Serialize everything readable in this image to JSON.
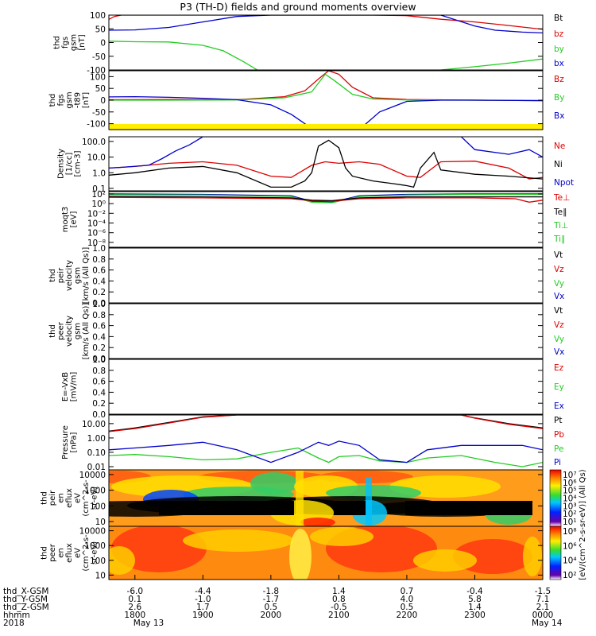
{
  "title": "P3 (TH-D) fields and ground moments overview",
  "chart_data": {
    "type": "line",
    "time_axis": {
      "range": [
        "2018-05-13 17:30",
        "2018-05-14 00:00"
      ],
      "tick_rows": [
        {
          "label": "thd_X-GSM",
          "values": [
            "-6.0",
            "-4.4",
            "-1.8",
            "1.4",
            "0.7",
            "-0.4",
            "-1.5"
          ]
        },
        {
          "label": "thd_Y-GSM",
          "values": [
            "0.1",
            "-1.0",
            "-1.7",
            "0.8",
            "4.0",
            "5.8",
            "7.1"
          ]
        },
        {
          "label": "thd_Z-GSM",
          "values": [
            "2.6",
            "1.7",
            "0.5",
            "-0.5",
            "0.5",
            "1.4",
            "2.1"
          ]
        },
        {
          "label": "hhmm",
          "values": [
            "1800",
            "1900",
            "2000",
            "2100",
            "2200",
            "2300",
            "0000"
          ]
        }
      ],
      "year": "2018",
      "date_labels": [
        "May 13",
        "May 14"
      ]
    },
    "panels": [
      {
        "name": "fgs",
        "ylabel": [
          "thd",
          "fgs",
          "gsm",
          "[nT]"
        ],
        "ylim": [
          -100,
          100
        ],
        "ticks": [
          "100",
          "50",
          "0",
          "-50",
          "-100"
        ],
        "legend": [
          {
            "name": "Bt",
            "color": "#000000"
          },
          {
            "name": "bz",
            "color": "#dd0000"
          },
          {
            "name": "by",
            "color": "#22cc22"
          },
          {
            "name": "bx",
            "color": "#0000cc"
          }
        ],
        "series": [
          {
            "name": "bz",
            "color": "#dd0000",
            "x": [
              17.62,
              17.7,
              17.8,
              18.0,
              18.3,
              18.6,
              19.0,
              19.5,
              20.0,
              20.5,
              20.9,
              21.5,
              22.0,
              22.5,
              23.0,
              23.5,
              24.0
            ],
            "y": [
              85,
              95,
              100,
              100,
              100,
              100,
              100,
              100,
              100,
              100,
              100,
              100,
              98,
              85,
              75,
              62,
              48
            ]
          },
          {
            "name": "bx",
            "color": "#0000cc",
            "x": [
              17.62,
              18.0,
              18.5,
              19.0,
              19.5,
              20.0,
              20.5,
              21.0,
              21.5,
              22.0,
              22.5,
              23.0,
              23.3,
              23.7,
              24.0
            ],
            "y": [
              45,
              46,
              55,
              75,
              95,
              100,
              100,
              100,
              100,
              100,
              100,
              60,
              45,
              38,
              35
            ]
          },
          {
            "name": "by",
            "color": "#22cc22",
            "x": [
              17.62,
              18.0,
              18.5,
              19.0,
              19.3,
              19.6,
              19.8
            ],
            "y": [
              5,
              3,
              2,
              -10,
              -30,
              -70,
              -100
            ]
          },
          {
            "name": "by",
            "color": "#22cc22",
            "x": [
              22.5,
              23.0,
              23.5,
              24.0
            ],
            "y": [
              -100,
              -88,
              -75,
              -60
            ]
          }
        ]
      },
      {
        "name": "fgs_gse",
        "ylabel": [
          "thd",
          "fgs",
          "gsm",
          "-t89",
          "[nT]"
        ],
        "ylim": [
          -125,
          125
        ],
        "ticks": [
          "100",
          "50",
          "0",
          "-50",
          "-100"
        ],
        "legend": [
          {
            "name": "Bz",
            "color": "#dd0000"
          },
          {
            "name": "By",
            "color": "#22cc22"
          },
          {
            "name": "Bx",
            "color": "#0000cc"
          }
        ],
        "series": [
          {
            "name": "Bz",
            "color": "#dd0000",
            "x": [
              17.62,
              18.5,
              19.5,
              20.2,
              20.5,
              20.7,
              20.85,
              21.0,
              21.2,
              21.5,
              22.0,
              23.0,
              24.0
            ],
            "y": [
              2,
              3,
              2,
              15,
              40,
              90,
              125,
              110,
              55,
              10,
              3,
              0,
              -2
            ]
          },
          {
            "name": "By",
            "color": "#22cc22",
            "x": [
              17.62,
              18.5,
              19.5,
              20.2,
              20.6,
              20.8,
              20.95,
              21.2,
              21.5,
              22.0,
              23.0,
              24.0
            ],
            "y": [
              0,
              0,
              1,
              10,
              35,
              110,
              80,
              25,
              5,
              1,
              0,
              -1
            ]
          },
          {
            "name": "Bx",
            "color": "#0000cc",
            "x": [
              17.62,
              18.0,
              18.5,
              19.0,
              19.5,
              20.0,
              20.3,
              20.6,
              20.8,
              21.3,
              21.6,
              22.0,
              22.5,
              23.0,
              24.0
            ],
            "y": [
              14,
              15,
              12,
              8,
              2,
              -20,
              -60,
              -120,
              -125,
              -125,
              -50,
              -5,
              0,
              0,
              -2
            ]
          }
        ]
      },
      {
        "name": "density",
        "ylabel": [
          "Density",
          "[1/cc]",
          "[cm-3]"
        ],
        "log": true,
        "ylim": [
          0.07,
          200
        ],
        "ticks": [
          "100.0",
          "10.0",
          "1.0",
          "0.1"
        ],
        "tick_values": [
          100,
          10,
          1,
          0.1
        ],
        "legend": [
          {
            "name": "Ne",
            "color": "#dd0000"
          },
          {
            "name": "Ni",
            "color": "#000000"
          },
          {
            "name": "Npot",
            "color": "#0000cc"
          }
        ],
        "series": [
          {
            "name": "Ne",
            "color": "#dd0000",
            "x": [
              17.62,
              18.0,
              18.5,
              19.0,
              19.5,
              20.0,
              20.3,
              20.6,
              20.8,
              21.0,
              21.3,
              21.6,
              22.0,
              22.2,
              22.5,
              23.0,
              23.5,
              23.8,
              24.0
            ],
            "y": [
              2.0,
              2.5,
              4.0,
              5.0,
              3.0,
              0.6,
              0.5,
              3.0,
              5.0,
              4.0,
              5.0,
              3.5,
              0.6,
              0.5,
              5.0,
              5.5,
              2.0,
              0.4,
              0.5
            ]
          },
          {
            "name": "Ni",
            "color": "#000000",
            "x": [
              17.62,
              18.0,
              18.5,
              19.0,
              19.5,
              20.0,
              20.3,
              20.5,
              20.6,
              20.7,
              20.85,
              21.0,
              21.1,
              21.2,
              21.5,
              21.8,
              22.0,
              22.1,
              22.2,
              22.4,
              22.5,
              23.0,
              23.5,
              24.0
            ],
            "y": [
              0.7,
              1.0,
              2.0,
              2.5,
              1.0,
              0.12,
              0.12,
              0.3,
              1.0,
              50,
              120,
              40,
              2.0,
              0.6,
              0.3,
              0.2,
              0.15,
              0.12,
              2.0,
              20,
              1.5,
              0.8,
              0.6,
              0.4
            ]
          },
          {
            "name": "Npot",
            "color": "#0000cc",
            "x": [
              17.62,
              17.8,
              18.2,
              18.4,
              18.6,
              18.8,
              19.0,
              22.8,
              23.0,
              23.5,
              23.8,
              24.0
            ],
            "y": [
              2.0,
              2.2,
              3.0,
              8.0,
              25,
              60,
              200,
              200,
              30,
              15,
              30,
              10
            ]
          }
        ]
      },
      {
        "name": "moms_t",
        "ylabel": [
          "moqt3",
          "[eV]"
        ],
        "log": true,
        "ylim": [
          1e-09,
          300
        ],
        "ticks": [
          "10²",
          "10⁰",
          "10⁻²",
          "10⁻⁴",
          "10⁻⁶",
          "10⁻⁸"
        ],
        "tick_values": [
          100,
          1,
          0.01,
          0.0001,
          1e-06,
          1e-08
        ],
        "legend": [
          {
            "name": "Te⊥",
            "color": "#dd0000"
          },
          {
            "name": "Te∥",
            "color": "#000000"
          },
          {
            "name": "Ti⊥",
            "color": "#22cc22"
          },
          {
            "name": "Ti∥",
            "color": "#22cc22"
          }
        ],
        "series": [
          {
            "name": "Ti",
            "color": "#0000cc",
            "x": [
              17.62,
              19.0,
              20.3,
              20.6,
              20.9,
              21.3,
              22.0,
              23.0,
              24.0
            ],
            "y": [
              100,
              80,
              40,
              3,
              2,
              40,
              80,
              100,
              100
            ]
          },
          {
            "name": "Ti∥",
            "color": "#22cc22",
            "x": [
              17.62,
              19.0,
              20.3,
              20.6,
              20.9,
              21.3,
              22.0,
              23.0,
              24.0
            ],
            "y": [
              70,
              60,
              30,
              2,
              1.5,
              30,
              60,
              80,
              80
            ]
          },
          {
            "name": "Te⊥",
            "color": "#dd0000",
            "x": [
              17.62,
              19.0,
              20.3,
              20.6,
              20.9,
              21.3,
              22.0,
              23.0,
              23.6,
              23.8,
              24.0
            ],
            "y": [
              20,
              15,
              10,
              4,
              3,
              10,
              15,
              15,
              10,
              2,
              5
            ]
          },
          {
            "name": "Te∥",
            "color": "#000000",
            "x": [
              17.62,
              19.0,
              20.3,
              20.6,
              20.9,
              21.3,
              22.0,
              23.0,
              24.0
            ],
            "y": [
              30,
              25,
              15,
              5,
              4,
              15,
              25,
              25,
              25
            ]
          }
        ]
      },
      {
        "name": "peir_velocity",
        "ylabel": [
          "thd",
          "peir",
          "velocity",
          "gsm",
          "[km/s (All Qs)]"
        ],
        "ylim": [
          0,
          1
        ],
        "ticks": [
          "1.0",
          "0.8",
          "0.6",
          "0.4",
          "0.2",
          "0.0"
        ],
        "legend": [
          {
            "name": "Vt",
            "color": "#000000"
          },
          {
            "name": "Vz",
            "color": "#dd0000"
          },
          {
            "name": "Vy",
            "color": "#22cc22"
          },
          {
            "name": "Vx",
            "color": "#0000cc"
          }
        ],
        "series": []
      },
      {
        "name": "peer_velocity",
        "ylabel": [
          "thd",
          "peer",
          "velocity",
          "gsm",
          "[km/s (All Qs)]"
        ],
        "ylim": [
          0,
          1
        ],
        "ticks": [
          "1.0",
          "0.8",
          "0.6",
          "0.4",
          "0.2",
          "0.0"
        ],
        "legend": [
          {
            "name": "Vt",
            "color": "#000000"
          },
          {
            "name": "Vz",
            "color": "#dd0000"
          },
          {
            "name": "Vy",
            "color": "#22cc22"
          },
          {
            "name": "Vx",
            "color": "#0000cc"
          }
        ],
        "series": []
      },
      {
        "name": "efield",
        "ylabel": [
          "E=-VxB",
          "[mV/m]"
        ],
        "ylim": [
          0,
          1
        ],
        "ticks": [
          "1.0",
          "0.8",
          "0.6",
          "0.4",
          "0.2",
          "0.0"
        ],
        "legend": [
          {
            "name": "Ez",
            "color": "#dd0000"
          },
          {
            "name": "Ey",
            "color": "#22cc22"
          },
          {
            "name": "Ex",
            "color": "#0000cc"
          }
        ],
        "series": []
      },
      {
        "name": "pressure",
        "ylabel": [
          "Pressure",
          "[nPa]"
        ],
        "log": true,
        "ylim": [
          0.006,
          40
        ],
        "ticks": [
          "10.00",
          "1.00",
          "0.10",
          "0.01"
        ],
        "tick_values": [
          10,
          1,
          0.1,
          0.01
        ],
        "legend": [
          {
            "name": "Pt",
            "color": "#000000"
          },
          {
            "name": "Pb",
            "color": "#dd0000"
          },
          {
            "name": "Pe",
            "color": "#22cc22"
          },
          {
            "name": "Pi",
            "color": "#0000cc"
          }
        ],
        "series": [
          {
            "name": "Pt",
            "color": "#000000",
            "x": [
              17.62,
              18.0,
              18.5,
              19.0,
              19.5,
              22.8,
              23.0,
              23.5,
              24.0
            ],
            "y": [
              3.0,
              5.0,
              12,
              30,
              40,
              40,
              25,
              10,
              5.0
            ]
          },
          {
            "name": "Pb",
            "color": "#dd0000",
            "x": [
              17.62,
              18.0,
              18.5,
              19.0,
              19.5,
              22.8,
              23.0,
              23.5,
              24.0
            ],
            "y": [
              2.8,
              4.5,
              11,
              28,
              40,
              40,
              24,
              9,
              4.5
            ]
          },
          {
            "name": "Pe",
            "color": "#22cc22",
            "x": [
              17.62,
              18.0,
              18.5,
              19.0,
              19.5,
              20.0,
              20.4,
              20.7,
              20.85,
              21.0,
              21.3,
              21.6,
              22.0,
              22.3,
              22.8,
              23.3,
              23.7,
              24.0
            ],
            "y": [
              0.06,
              0.07,
              0.05,
              0.03,
              0.035,
              0.1,
              0.2,
              0.04,
              0.02,
              0.05,
              0.06,
              0.025,
              0.02,
              0.04,
              0.06,
              0.02,
              0.01,
              0.02
            ]
          },
          {
            "name": "Pi",
            "color": "#0000cc",
            "x": [
              17.62,
              18.0,
              18.5,
              19.0,
              19.5,
              20.0,
              20.4,
              20.7,
              20.85,
              21.0,
              21.3,
              21.6,
              22.0,
              22.3,
              22.8,
              23.3,
              23.7,
              24.0
            ],
            "y": [
              0.15,
              0.2,
              0.3,
              0.5,
              0.15,
              0.02,
              0.1,
              0.5,
              0.3,
              0.6,
              0.3,
              0.03,
              0.02,
              0.15,
              0.3,
              0.3,
              0.3,
              0.15
            ]
          }
        ]
      },
      {
        "name": "peir_spectrogram",
        "type": "heatmap",
        "ylabel": [
          "thd",
          "peir",
          "en",
          "eflux",
          "eV",
          "(cm^2-s-",
          "sr-eV)"
        ],
        "ticks": [
          "10000",
          "1000",
          "100",
          "10"
        ],
        "colorbar_ticks": [
          "10⁷",
          "10⁶",
          "10⁵",
          "10⁴",
          "10³",
          "10²",
          "10¹"
        ]
      },
      {
        "name": "peer_spectrogram",
        "type": "heatmap",
        "ylabel": [
          "thd",
          "peer",
          "en",
          "eflux",
          "eV",
          "(cm^2-s-",
          "sr-eV)"
        ],
        "ticks": [
          "10000",
          "1000",
          "100",
          "10"
        ],
        "colorbar_ticks": [
          "10⁸",
          "10⁶",
          "10⁴",
          "10²"
        ]
      }
    ],
    "colorbar_label": "[eV/(cm^2-s-sr-eV)] (All Qs)",
    "colorbar_label_prefix": "[eV/(cm",
    "colorbar_label_rest": "-s-sr-eV)] (All Qs)"
  }
}
